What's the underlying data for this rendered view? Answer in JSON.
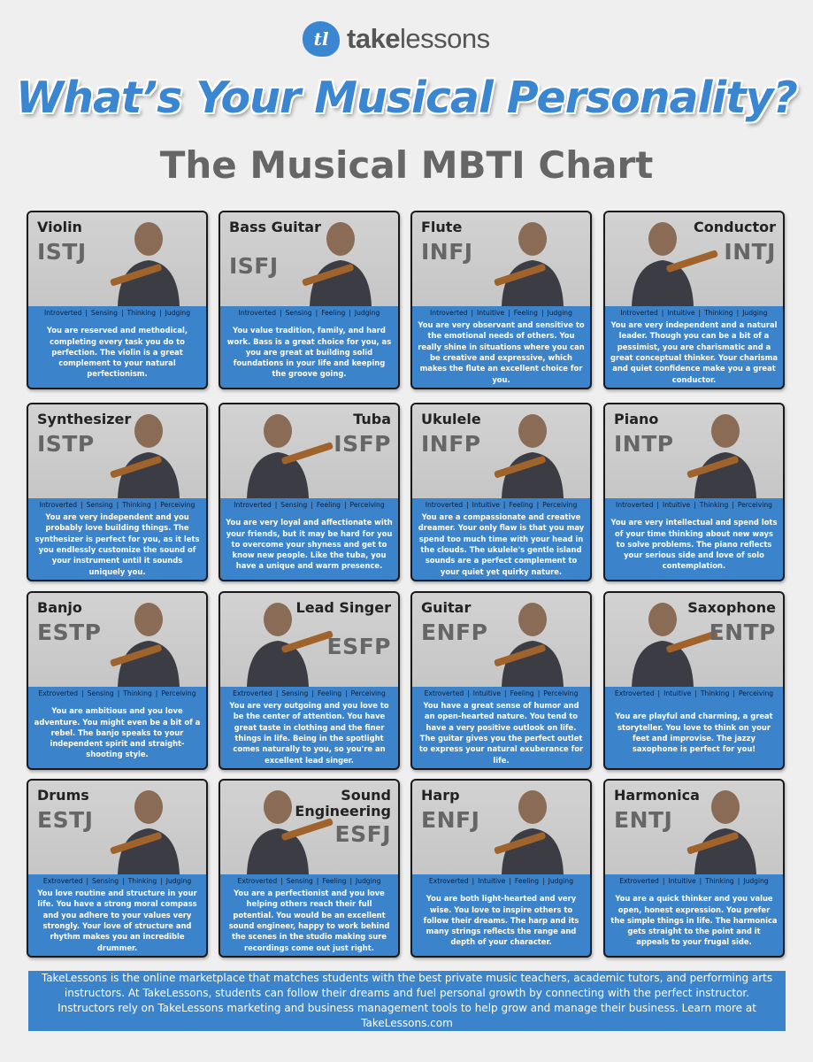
{
  "brand": {
    "logo_mark": "tl",
    "name_bold": "take",
    "name_light": "lessons",
    "accent": "#3a86d0"
  },
  "title": "What’s Your Musical Personality?",
  "subtitle": "The Musical MBTI Chart",
  "cards": [
    {
      "instrument": "Violin",
      "type": "ISTJ",
      "icon": "violin-player-photo",
      "traits": [
        "Introverted",
        "Sensing",
        "Thinking",
        "Judging"
      ],
      "description": "You are reserved and methodical, completing every task  you do to perfection. The violin is a great complement to your natural perfectionism."
    },
    {
      "instrument": "Bass Guitar",
      "type": "ISFJ",
      "icon": "bass-guitar-player-photo",
      "traits": [
        "Introverted",
        "Sensing",
        "Feeling",
        "Judging"
      ],
      "description": "You value tradition, family, and hard work. Bass is a great choice for you, as you are great at building solid foundations in your life and keeping the groove going."
    },
    {
      "instrument": "Flute",
      "type": "INFJ",
      "icon": "flute-player-photo",
      "traits": [
        "Introverted",
        "Intuitive",
        "Feeling",
        "Judging"
      ],
      "description": "You are very observant and sensitive to the emotional needs of others. You really shine in situations where you can be creative and expressive, which makes the flute an excellent choice for you."
    },
    {
      "instrument": "Conductor",
      "type": "INTJ",
      "icon": "conductor-photo",
      "traits": [
        "Introverted",
        "Intuitive",
        "Thinking",
        "Judging"
      ],
      "description": "You are very independent and a natural leader. Though you can be a bit of a pessimist, you are charismatic and a great conceptual thinker. Your charisma and quiet confidence make you a great conductor."
    },
    {
      "instrument": "Synthesizer",
      "type": "ISTP",
      "icon": "synthesizer-photo",
      "traits": [
        "Introverted",
        "Sensing",
        "Thinking",
        "Perceiving"
      ],
      "description": "You are very independent and you probably love building things. The synthesizer is perfect for you, as it lets you endlessly customize the sound of your instrument until it sounds uniquely you."
    },
    {
      "instrument": "Tuba",
      "type": "ISFP",
      "icon": "tuba-player-photo",
      "traits": [
        "Introverted",
        "Sensing",
        "Feeling",
        "Perceiving"
      ],
      "description": "You are very loyal and affectionate with your friends, but it may be hard for you to overcome your shyness and get to know new people. Like the tuba, you have a unique and warm presence."
    },
    {
      "instrument": "Ukulele",
      "type": "INFP",
      "icon": "ukulele-player-photo",
      "traits": [
        "Introverted",
        "Intuitive",
        "Feeling",
        "Perceiving"
      ],
      "description": "You are a compassionate and creative dreamer. Your only flaw is that you may spend too much time with your head in the clouds. The ukulele's gentle island sounds are a perfect complement to your quiet yet quirky nature."
    },
    {
      "instrument": "Piano",
      "type": "INTP",
      "icon": "piano-player-photo",
      "traits": [
        "Introverted",
        "Intuitive",
        "Thinking",
        "Perceiving"
      ],
      "description": "You are very intellectual and spend lots of your time thinking about new ways to solve problems. The piano reflects your serious side and love of  solo contemplation."
    },
    {
      "instrument": "Banjo",
      "type": "ESTP",
      "icon": "banjo-player-photo",
      "traits": [
        "Extroverted",
        "Sensing",
        "Thinking",
        "Perceiving"
      ],
      "description": "You are ambitious and you love adventure. You might even be a bit of a rebel. The banjo speaks to your independent spirit and straight-shooting style."
    },
    {
      "instrument": "Lead Singer",
      "type": "ESFP",
      "icon": "singer-photo",
      "traits": [
        "Extroverted",
        "Sensing",
        "Feeling",
        "Perceiving"
      ],
      "description": "You are very outgoing and you love to be the center of attention. You have great taste in clothing and the finer things in life. Being in the spotlight comes naturally to you, so you're an excellent lead singer."
    },
    {
      "instrument": "Guitar",
      "type": "ENFP",
      "icon": "guitar-player-photo",
      "traits": [
        "Extroverted",
        "Intuitive",
        "Feeling",
        "Perceiving"
      ],
      "description": "You have a great sense of humor and an open-hearted nature. You tend to have a very positive outlook on life. The guitar gives you the perfect outlet to express your natural exuberance for life."
    },
    {
      "instrument": "Saxophone",
      "type": "ENTP",
      "icon": "saxophone-player-photo",
      "traits": [
        "Extroverted",
        "Intuitive",
        "Thinking",
        "Perceiving"
      ],
      "description": "You are playful and charming, a great storyteller. You love to think on your feet and improvise. The jazzy saxophone is perfect for you!"
    },
    {
      "instrument": "Drums",
      "type": "ESTJ",
      "icon": "drum-kit-photo",
      "traits": [
        "Extroverted",
        "Sensing",
        "Thinking",
        "Judging"
      ],
      "description": "You love routine and structure in your life. You have a strong moral compass and you adhere to your values very strongly. Your love of structure and rhythm makes you an incredible drummer."
    },
    {
      "instrument": "Sound Engineering",
      "type": "ESFJ",
      "icon": "sound-engineer-photo",
      "traits": [
        "Extroverted",
        "Sensing",
        "Feeling",
        "Judging"
      ],
      "description": "You are a perfectionist and you love helping others reach their full potential. You would be an excellent sound engineer, happy to work behind the scenes in the studio making sure recordings come out just right."
    },
    {
      "instrument": "Harp",
      "type": "ENFJ",
      "icon": "harp-player-photo",
      "traits": [
        "Extroverted",
        "Intuitive",
        "Feeling",
        "Judging"
      ],
      "description": "You are both light-hearted and very wise. You love to inspire others to follow their dreams. The harp and its many strings reflects the range and depth of your character."
    },
    {
      "instrument": "Harmonica",
      "type": "ENTJ",
      "icon": "harmonica-player-photo",
      "traits": [
        "Extroverted",
        "Intuitive",
        "Thinking",
        "Judging"
      ],
      "description": "You are a quick thinker and you value open, honest expression. You prefer the simple things in life. The harmonica gets straight to the point and it appeals to your frugal side."
    }
  ],
  "footer": "TakeLessons is the online marketplace that matches students with the best private music teachers, academic tutors, and performing arts instructors. At TakeLessons, students can follow their dreams and fuel personal growth by connecting with the perfect instructor. Instructors rely on TakeLessons marketing and business management tools to help grow and manage their business. Learn more at TakeLessons.com"
}
